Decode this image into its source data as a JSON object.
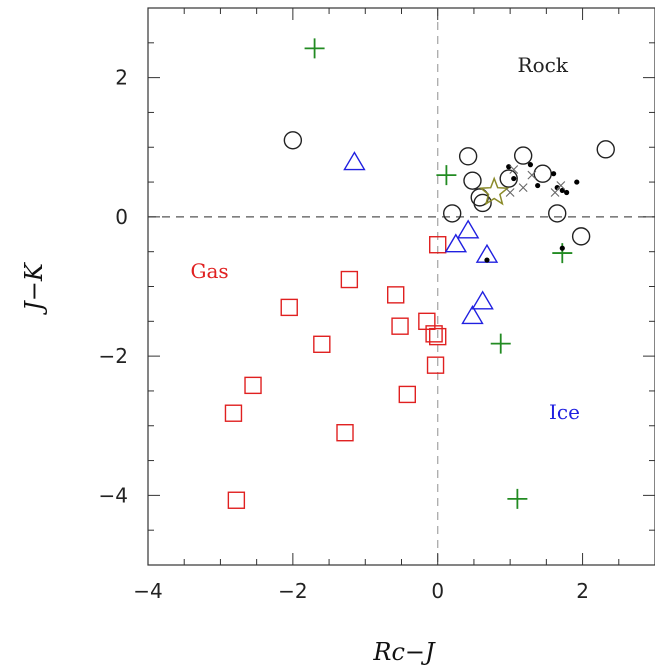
{
  "chart_data": {
    "type": "scatter",
    "xlabel": "Rc−J",
    "ylabel": "J−K",
    "xlim": [
      -4,
      3
    ],
    "ylim": [
      -5,
      3
    ],
    "xticks": [
      -4,
      -2,
      0,
      2
    ],
    "yticks": [
      -4,
      -2,
      0,
      2
    ],
    "tick_labels_x": [
      "−4",
      "−2",
      "0",
      "2"
    ],
    "tick_labels_y": [
      "−4",
      "−2",
      "0",
      "2"
    ],
    "grid": false,
    "reference_lines": [
      {
        "orientation": "vertical",
        "x": 0,
        "style": "dashed",
        "color": "#aaaaaa"
      },
      {
        "orientation": "horizontal",
        "y": 0,
        "style": "dashed",
        "color": "#555555"
      }
    ],
    "annotations": [
      {
        "text": "Rock",
        "x": 1.45,
        "y": 2.08,
        "color": "#222222"
      },
      {
        "text": "Gas",
        "x": -3.15,
        "y": -0.88,
        "color": "#e02020"
      },
      {
        "text": "Ice",
        "x": 1.75,
        "y": -2.9,
        "color": "#2020e0"
      }
    ],
    "series": [
      {
        "marker": "square",
        "color": "#e02020",
        "points": [
          [
            -2.05,
            -1.3
          ],
          [
            -1.22,
            -0.9
          ],
          [
            -1.6,
            -1.83
          ],
          [
            -2.55,
            -2.42
          ],
          [
            -2.82,
            -2.82
          ],
          [
            -2.78,
            -4.07
          ],
          [
            -1.28,
            -3.1
          ],
          [
            -0.58,
            -1.12
          ],
          [
            -0.52,
            -1.57
          ],
          [
            -0.15,
            -1.5
          ],
          [
            -0.05,
            -1.68
          ],
          [
            0.0,
            -1.72
          ],
          [
            -0.03,
            -2.13
          ],
          [
            -0.42,
            -2.55
          ],
          [
            0.0,
            -0.4
          ]
        ]
      },
      {
        "marker": "triangle",
        "color": "#2020e0",
        "points": [
          [
            -1.15,
            0.78
          ],
          [
            0.42,
            -0.2
          ],
          [
            0.25,
            -0.4
          ],
          [
            0.68,
            -0.55
          ],
          [
            0.62,
            -1.22
          ],
          [
            0.48,
            -1.43
          ]
        ]
      },
      {
        "marker": "plus",
        "color": "#228b22",
        "points": [
          [
            -1.7,
            2.42
          ],
          [
            0.12,
            0.6
          ],
          [
            1.72,
            -0.52
          ],
          [
            0.87,
            -1.82
          ],
          [
            1.1,
            -4.05
          ]
        ]
      },
      {
        "marker": "circle",
        "color": "#222222",
        "points": [
          [
            -2.0,
            1.1
          ],
          [
            0.42,
            0.87
          ],
          [
            0.48,
            0.52
          ],
          [
            0.58,
            0.28
          ],
          [
            0.62,
            0.2
          ],
          [
            0.2,
            0.05
          ],
          [
            0.98,
            0.55
          ],
          [
            1.18,
            0.88
          ],
          [
            1.45,
            0.62
          ],
          [
            1.65,
            0.05
          ],
          [
            1.98,
            -0.28
          ],
          [
            2.32,
            0.97
          ]
        ]
      },
      {
        "marker": "star",
        "color": "#8b8b2a",
        "points": [
          [
            0.78,
            0.35
          ]
        ]
      },
      {
        "marker": "dot",
        "color": "#000000",
        "points": [
          [
            1.28,
            0.75
          ],
          [
            1.38,
            0.45
          ],
          [
            1.6,
            0.62
          ],
          [
            1.65,
            0.42
          ],
          [
            1.72,
            0.38
          ],
          [
            1.78,
            0.35
          ],
          [
            1.92,
            0.5
          ],
          [
            0.98,
            0.72
          ],
          [
            1.05,
            0.55
          ],
          [
            0.68,
            -0.62
          ],
          [
            1.72,
            -0.45
          ]
        ]
      },
      {
        "marker": "cross",
        "color": "#666666",
        "points": [
          [
            1.05,
            0.68
          ],
          [
            1.18,
            0.42
          ],
          [
            1.3,
            0.6
          ],
          [
            1.62,
            0.35
          ],
          [
            1.7,
            0.45
          ],
          [
            1.0,
            0.35
          ]
        ]
      }
    ]
  }
}
